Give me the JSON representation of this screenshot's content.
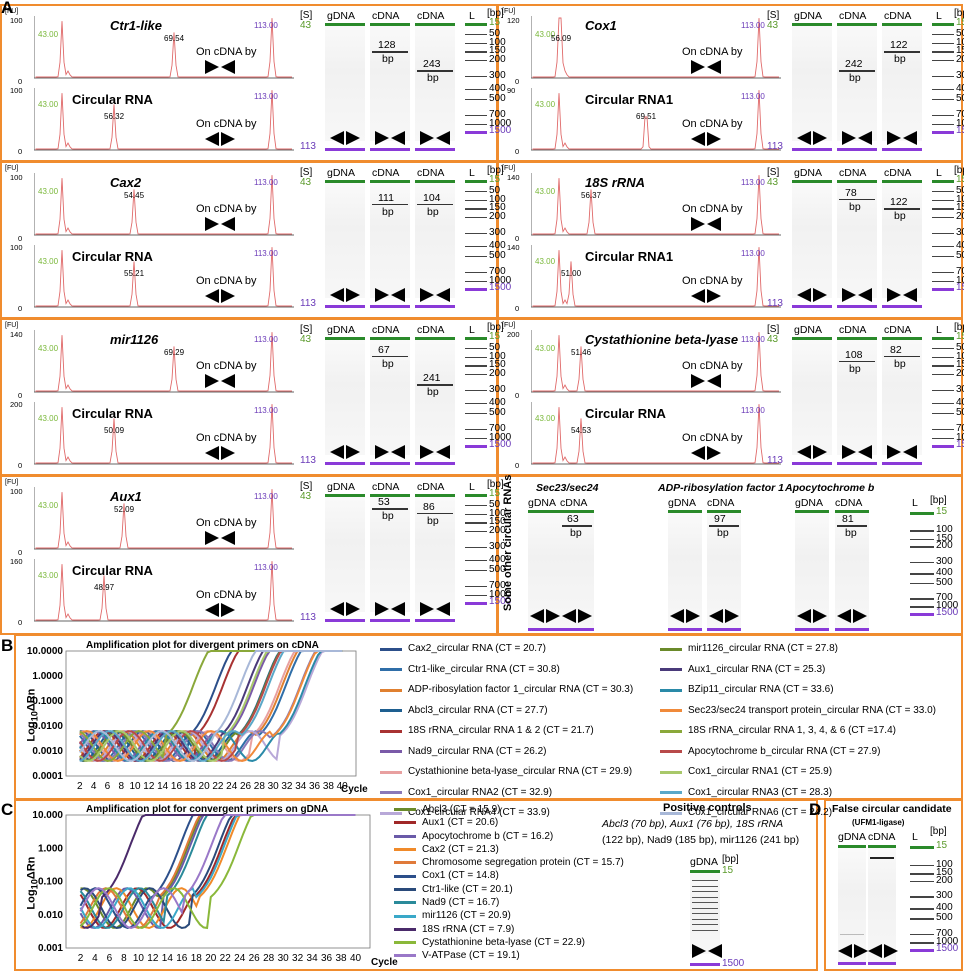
{
  "panel_letters": {
    "A": "A",
    "B": "B",
    "C": "C",
    "D": "D"
  },
  "common": {
    "fu": "[FU]",
    "s": "[S]",
    "bp_unit": "[bp]",
    "size_label": "bp",
    "gdna": "gDNA",
    "cdna": "cDNA",
    "ladder": "L",
    "marker_low": "43",
    "marker_high": "113",
    "peak_low": "43.00",
    "peak_high": "113.00",
    "ladder_sizes": [
      "15",
      "50",
      "100",
      "150",
      "200",
      "300",
      "400",
      "500",
      "700",
      "1000",
      "1500"
    ],
    "on_cdna_by": "On cDNA by"
  },
  "a_panels": [
    {
      "gene": "Ctr1-like",
      "sub": "Circular RNA",
      "top_peak": "69.54",
      "bot_peak": "56.32",
      "ymax_top": "100",
      "ymax_bot": "100",
      "bands": [
        "128",
        "243"
      ]
    },
    {
      "gene": "Cox1",
      "sub": "Circular RNA1",
      "top_peak": "56.09",
      "bot_peak": "69.51",
      "ymax_top": "120",
      "ymax_bot": "90",
      "bands": [
        "242",
        "122"
      ]
    },
    {
      "gene": "Cax2",
      "sub": "Circular RNA",
      "top_peak": "54.45",
      "bot_peak": "55.21",
      "ymax_top": "100",
      "ymax_bot": "100",
      "bands": [
        "111",
        "104"
      ]
    },
    {
      "gene": "18S rRNA",
      "sub": "Circular RNA1",
      "top_peak": "56.37",
      "bot_peak": "51.00",
      "ymax_top": "140",
      "ymax_bot": "140",
      "bands": [
        "78",
        "122"
      ]
    },
    {
      "gene": "mir1126",
      "sub": "Circular RNA",
      "top_peak": "69.29",
      "bot_peak": "50.09",
      "ymax_top": "140",
      "ymax_bot": "200",
      "bands": [
        "67",
        "241"
      ]
    },
    {
      "gene": "Cystathionine beta-lyase",
      "sub": "Circular RNA",
      "top_peak": "51.46",
      "bot_peak": "54.53",
      "ymax_top": "200",
      "ymax_bot": "",
      "bands": [
        "108",
        "82"
      ]
    },
    {
      "gene": "Aux1",
      "sub": "Circular RNA",
      "top_peak": "52.09",
      "bot_peak": "48.97",
      "ymax_top": "100",
      "ymax_bot": "160",
      "bands": [
        "53",
        "86"
      ]
    }
  ],
  "other_circ": {
    "title": "Some other circular RNAs",
    "genes": [
      "Sec23/sec24",
      "ADP-ribosylation factor 1",
      "Apocytochrome b"
    ],
    "bands": [
      "63",
      "97",
      "81"
    ]
  },
  "chart_data": [
    {
      "type": "line",
      "title": "Amplification plot for divergent primers on cDNA",
      "xlabel": "Cycle",
      "ylabel": "Log10 ΔRn",
      "y_ticks": [
        "10.0000",
        "1.0000",
        "0.1000",
        "0.0100",
        "0.0010",
        "0.0001"
      ],
      "x_ticks": [
        "2",
        "4",
        "6",
        "8",
        "10",
        "12",
        "14",
        "16",
        "18",
        "20",
        "22",
        "24",
        "26",
        "28",
        "30",
        "32",
        "34",
        "36",
        "38",
        "40"
      ],
      "series": [
        {
          "name": "Cax2_circular RNA (CT = 20.7)",
          "color": "#2c4f8a",
          "ct": 20.7
        },
        {
          "name": "Ctr1-like_circular RNA (CT = 30.8)",
          "color": "#2f6ea8",
          "ct": 30.8
        },
        {
          "name": "ADP-ribosylation factor 1_circular RNA (CT = 30.3)",
          "color": "#e08030",
          "ct": 30.3
        },
        {
          "name": "Abcl3_circular RNA (CT = 27.7)",
          "color": "#1e5f90",
          "ct": 27.7
        },
        {
          "name": "18S rRNA_circular RNA 1 & 2 (CT = 21.7)",
          "color": "#a83232",
          "ct": 21.7
        },
        {
          "name": "Nad9_circular RNA (CT = 26.2)",
          "color": "#7a5aa8",
          "ct": 26.2
        },
        {
          "name": "Cystathionine beta-lyase_circular RNA (CT = 29.9)",
          "color": "#e8a0a0",
          "ct": 29.9
        },
        {
          "name": "Cox1_circular RNA2 (CT = 32.9)",
          "color": "#8a78b8",
          "ct": 32.9
        },
        {
          "name": "Cox1-circular RNA4 (CT = 33.9)",
          "color": "#b8a8d8",
          "ct": 33.9
        },
        {
          "name": "mir1126_circular RNA (CT = 27.8)",
          "color": "#6a8a2a",
          "ct": 27.8
        },
        {
          "name": "Aux1_circular RNA (CT = 25.3)",
          "color": "#4a3a7a",
          "ct": 25.3
        },
        {
          "name": "BZip11_circular RNA (CT = 33.6)",
          "color": "#2a8aa8",
          "ct": 33.6
        },
        {
          "name": "Sec23/sec24 transport protein_circular RNA (CT = 33.0)",
          "color": "#f08a3a",
          "ct": 33.0
        },
        {
          "name": "18S rRNA_circular RNA 1, 3, 4, & 6 (CT =17.4)",
          "color": "#8aa83a",
          "ct": 17.4
        },
        {
          "name": "Apocytochrome b_circular RNA (CT = 27.9)",
          "color": "#b84a4a",
          "ct": 27.9
        },
        {
          "name": "Cox1_circular RNA1 (CT = 25.9)",
          "color": "#a8c86a",
          "ct": 25.9
        },
        {
          "name": "Cox1_circular RNA3 (CT = 28.3)",
          "color": "#5aa8c8",
          "ct": 28.3
        },
        {
          "name": "Cox1_circular RNA6 (CT = 24.2)",
          "color": "#a8b8d8",
          "ct": 24.2
        }
      ]
    },
    {
      "type": "line",
      "title": "Amplification plot for convergent primers on gDNA",
      "xlabel": "Cycle",
      "ylabel": "Log10 ΔRn",
      "y_ticks": [
        "10.000",
        "1.000",
        "0.100",
        "0.010",
        "0.001"
      ],
      "x_ticks": [
        "2",
        "4",
        "6",
        "8",
        "10",
        "12",
        "14",
        "16",
        "18",
        "20",
        "22",
        "24",
        "26",
        "28",
        "30",
        "32",
        "34",
        "36",
        "38",
        "40"
      ],
      "series": [
        {
          "name": "Abcl3 (CT = 15.9)",
          "color": "#6a8a2a",
          "ct": 15.9
        },
        {
          "name": "Aux1 (CT = 20.6)",
          "color": "#a02828",
          "ct": 20.6
        },
        {
          "name": "Apocytochrome b (CT = 16.2)",
          "color": "#6a5aa8",
          "ct": 16.2
        },
        {
          "name": "Cax2 (CT = 21.3)",
          "color": "#f08a2a",
          "ct": 21.3
        },
        {
          "name": "Chromosome segregation protein (CT = 15.7)",
          "color": "#e07a3a",
          "ct": 15.7
        },
        {
          "name": "Cox1 (CT = 14.8)",
          "color": "#2c4f8a",
          "ct": 14.8
        },
        {
          "name": "Ctr1-like (CT = 20.1)",
          "color": "#2a4a7a",
          "ct": 20.1
        },
        {
          "name": "Nad9 (CT = 16.7)",
          "color": "#2a8a9a",
          "ct": 16.7
        },
        {
          "name": "mir1126 (CT = 20.9)",
          "color": "#3aa8c8",
          "ct": 20.9
        },
        {
          "name": "18S rRNA (CT = 7.9)",
          "color": "#4a2a6a",
          "ct": 7.9
        },
        {
          "name": "Cystathionine beta-lyase (CT = 22.9)",
          "color": "#8ab83a",
          "ct": 22.9
        },
        {
          "name": "V-ATPase (CT = 19.1)",
          "color": "#9a78c8",
          "ct": 19.1
        }
      ]
    }
  ],
  "positive_controls": {
    "title": "Positive controls",
    "line1": "Abcl3 (70 bp), Aux1 (76 bp), 18S rRNA",
    "line2": "(122 bp), Nad9 (185 bp), mir1126 (241 bp)"
  },
  "false_circ": {
    "title": "False circular candidate",
    "sub": "(UFM1-ligase)"
  }
}
